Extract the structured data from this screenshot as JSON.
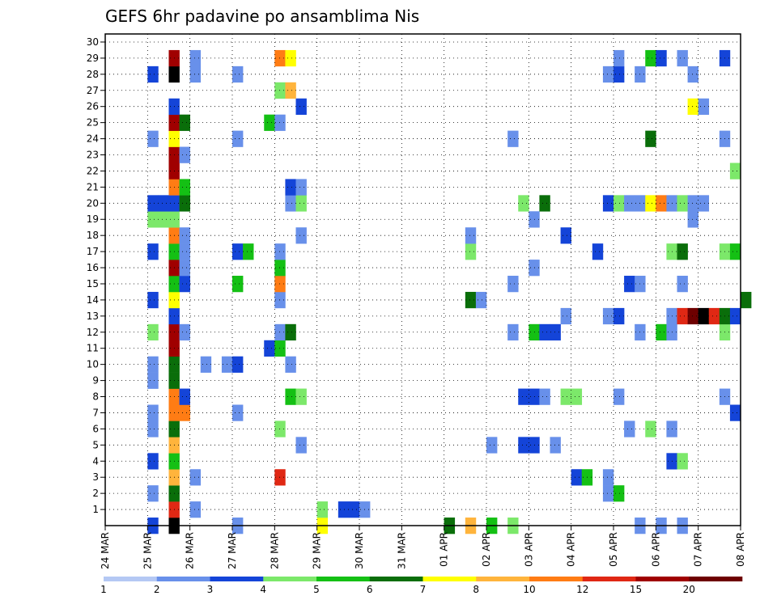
{
  "chart_data": {
    "type": "heatmap",
    "title": "GEFS 6hr padavine po ansamblima Nis",
    "x_labels": [
      "24 MAR",
      "25 MAR",
      "26 MAR",
      "27 MAR",
      "28 MAR",
      "29 MAR",
      "30 MAR",
      "31 MAR",
      "01 APR",
      "02 APR",
      "03 APR",
      "04 APR",
      "05 APR",
      "06 APR",
      "07 APR",
      "08 APR"
    ],
    "y_labels": [
      "1",
      "2",
      "3",
      "4",
      "5",
      "6",
      "7",
      "8",
      "9",
      "10",
      "11",
      "12",
      "13",
      "14",
      "15",
      "16",
      "17",
      "18",
      "19",
      "20",
      "21",
      "22",
      "23",
      "24",
      "25",
      "26",
      "27",
      "28",
      "29",
      "30"
    ],
    "y_range": [
      0,
      30
    ],
    "grid": true,
    "colorbar": {
      "labels": [
        "1",
        "2",
        "3",
        "4",
        "5",
        "6",
        "7",
        "8",
        "10",
        "12",
        "15",
        "20"
      ],
      "colors": [
        "#b4c8f4",
        "#6890ea",
        "#1444d8",
        "#7ce86a",
        "#14c014",
        "#0a6e0a",
        "#ffff00",
        "#ffb43c",
        "#ff7c14",
        "#e02814",
        "#a00000",
        "#6e0000"
      ]
    },
    "cells": [
      [
        1,
        0,
        2
      ],
      [
        1.5,
        0,
        12
      ],
      [
        3,
        0,
        1
      ],
      [
        5,
        0,
        6
      ],
      [
        8,
        0,
        3
      ],
      [
        8.5,
        0,
        7
      ],
      [
        8,
        0,
        5
      ],
      [
        9,
        0,
        4
      ],
      [
        9.5,
        0,
        3
      ],
      [
        12.5,
        0,
        1
      ],
      [
        13,
        0,
        1
      ],
      [
        13.5,
        0,
        1
      ],
      [
        1.5,
        1,
        9
      ],
      [
        2,
        1,
        1
      ],
      [
        5,
        1,
        3
      ],
      [
        5.5,
        1,
        2
      ],
      [
        5.75,
        1,
        2
      ],
      [
        6,
        1,
        1
      ],
      [
        1,
        2,
        1
      ],
      [
        1.5,
        2,
        5
      ],
      [
        11.75,
        2,
        1
      ],
      [
        12,
        2,
        4
      ],
      [
        1.5,
        3,
        7
      ],
      [
        2,
        3,
        1
      ],
      [
        4,
        3,
        9
      ],
      [
        11,
        3,
        2
      ],
      [
        11.25,
        3,
        4
      ],
      [
        11.75,
        3,
        1
      ],
      [
        1,
        4,
        2
      ],
      [
        1.5,
        4,
        4
      ],
      [
        13.25,
        4,
        2
      ],
      [
        13.5,
        4,
        3
      ],
      [
        1.5,
        5,
        7
      ],
      [
        4.5,
        5,
        1
      ],
      [
        9,
        5,
        1
      ],
      [
        9.75,
        5,
        2
      ],
      [
        10,
        5,
        2
      ],
      [
        10.5,
        5,
        1
      ],
      [
        1,
        6,
        1
      ],
      [
        1.5,
        6,
        5
      ],
      [
        4,
        6,
        3
      ],
      [
        12.25,
        6,
        1
      ],
      [
        12.75,
        6,
        3
      ],
      [
        13.25,
        6,
        1
      ],
      [
        1,
        7,
        1
      ],
      [
        1.5,
        7,
        8
      ],
      [
        1.75,
        7,
        8
      ],
      [
        3,
        7,
        1
      ],
      [
        14.75,
        7,
        2
      ],
      [
        1.5,
        8,
        8
      ],
      [
        1.75,
        8,
        2
      ],
      [
        4.25,
        8,
        4
      ],
      [
        4.5,
        8,
        3
      ],
      [
        9.75,
        8,
        2
      ],
      [
        10,
        8,
        2
      ],
      [
        10.25,
        8,
        1
      ],
      [
        10.75,
        8,
        3
      ],
      [
        11,
        8,
        3
      ],
      [
        12,
        8,
        1
      ],
      [
        14.5,
        8,
        1
      ],
      [
        1,
        9,
        1
      ],
      [
        1.5,
        9,
        5
      ],
      [
        1,
        10,
        1
      ],
      [
        1.5,
        10,
        5
      ],
      [
        2.25,
        10,
        1
      ],
      [
        2.75,
        10,
        1
      ],
      [
        3,
        10,
        2
      ],
      [
        4.25,
        10,
        1
      ],
      [
        1.5,
        11,
        10
      ],
      [
        3.75,
        11,
        2
      ],
      [
        4,
        11,
        4
      ],
      [
        1,
        12,
        3
      ],
      [
        1.5,
        12,
        10
      ],
      [
        1.75,
        12,
        1
      ],
      [
        4,
        12,
        1
      ],
      [
        4.25,
        12,
        5
      ],
      [
        9.5,
        12,
        1
      ],
      [
        10,
        12,
        4
      ],
      [
        10.25,
        12,
        2
      ],
      [
        10.5,
        12,
        2
      ],
      [
        12.5,
        12,
        1
      ],
      [
        13,
        12,
        4
      ],
      [
        13.25,
        12,
        1
      ],
      [
        14.5,
        12,
        3
      ],
      [
        1.5,
        13,
        2
      ],
      [
        10.75,
        13,
        1
      ],
      [
        11.75,
        13,
        1
      ],
      [
        12,
        13,
        2
      ],
      [
        13.25,
        13,
        1
      ],
      [
        13.5,
        13,
        9
      ],
      [
        13.75,
        13,
        11
      ],
      [
        14,
        13,
        12
      ],
      [
        14.25,
        13,
        9
      ],
      [
        14.5,
        13,
        5
      ],
      [
        14.75,
        13,
        2
      ],
      [
        1,
        14,
        2
      ],
      [
        1.5,
        14,
        6
      ],
      [
        4,
        14,
        1
      ],
      [
        8.5,
        14,
        5
      ],
      [
        8.75,
        14,
        1
      ],
      [
        15,
        14,
        5
      ],
      [
        1.5,
        15,
        4
      ],
      [
        1.75,
        15,
        2
      ],
      [
        3,
        15,
        4
      ],
      [
        4,
        15,
        8
      ],
      [
        9.5,
        15,
        1
      ],
      [
        12.25,
        15,
        2
      ],
      [
        12.5,
        15,
        1
      ],
      [
        13.5,
        15,
        1
      ],
      [
        1.5,
        16,
        10
      ],
      [
        1.75,
        16,
        1
      ],
      [
        4,
        16,
        4
      ],
      [
        10,
        16,
        1
      ],
      [
        1,
        17,
        2
      ],
      [
        1.5,
        17,
        4
      ],
      [
        1.75,
        17,
        1
      ],
      [
        3,
        17,
        2
      ],
      [
        3.25,
        17,
        4
      ],
      [
        4,
        17,
        1
      ],
      [
        8.5,
        17,
        3
      ],
      [
        11.5,
        17,
        2
      ],
      [
        13.25,
        17,
        3
      ],
      [
        13.5,
        17,
        5
      ],
      [
        14.5,
        17,
        3
      ],
      [
        14.75,
        17,
        4
      ],
      [
        1.5,
        18,
        8
      ],
      [
        1.75,
        18,
        1
      ],
      [
        4.5,
        18,
        1
      ],
      [
        8.5,
        18,
        1
      ],
      [
        10.75,
        18,
        2
      ],
      [
        1,
        19,
        3
      ],
      [
        1.25,
        19,
        3
      ],
      [
        1.5,
        19,
        3
      ],
      [
        10,
        19,
        1
      ],
      [
        13.75,
        19,
        1
      ],
      [
        1,
        20,
        2
      ],
      [
        1.25,
        20,
        2
      ],
      [
        1.5,
        20,
        2
      ],
      [
        1.75,
        20,
        5
      ],
      [
        4.25,
        20,
        1
      ],
      [
        4.5,
        20,
        3
      ],
      [
        9.75,
        20,
        3
      ],
      [
        10.25,
        20,
        5
      ],
      [
        11.75,
        20,
        2
      ],
      [
        12,
        20,
        3
      ],
      [
        12.25,
        20,
        1
      ],
      [
        12.5,
        20,
        1
      ],
      [
        12.75,
        20,
        6
      ],
      [
        13,
        20,
        8
      ],
      [
        13.25,
        20,
        1
      ],
      [
        13.5,
        20,
        3
      ],
      [
        13.75,
        20,
        1
      ],
      [
        14,
        20,
        1
      ],
      [
        1.5,
        21,
        8
      ],
      [
        1.75,
        21,
        4
      ],
      [
        4.25,
        21,
        2
      ],
      [
        4.5,
        21,
        1
      ],
      [
        1.5,
        22,
        10
      ],
      [
        14.75,
        22,
        3
      ],
      [
        1.5,
        23,
        10
      ],
      [
        1.75,
        23,
        1
      ],
      [
        1,
        24,
        1
      ],
      [
        1.5,
        24,
        6
      ],
      [
        3,
        24,
        1
      ],
      [
        9.5,
        24,
        1
      ],
      [
        12.75,
        24,
        5
      ],
      [
        14.5,
        24,
        1
      ],
      [
        1.5,
        25,
        10
      ],
      [
        1.75,
        25,
        5
      ],
      [
        3.75,
        25,
        4
      ],
      [
        4,
        25,
        1
      ],
      [
        1.5,
        26,
        2
      ],
      [
        4.5,
        26,
        2
      ],
      [
        13.75,
        26,
        6
      ],
      [
        14,
        26,
        1
      ],
      [
        4,
        27,
        3
      ],
      [
        4.25,
        27,
        7
      ],
      [
        1,
        28,
        2
      ],
      [
        1.5,
        28,
        12
      ],
      [
        2,
        28,
        1
      ],
      [
        3,
        28,
        1
      ],
      [
        11.75,
        28,
        1
      ],
      [
        12,
        28,
        2
      ],
      [
        12.5,
        28,
        1
      ],
      [
        13.75,
        28,
        1
      ],
      [
        1.5,
        29,
        10
      ],
      [
        2,
        29,
        1
      ],
      [
        4,
        29,
        8
      ],
      [
        4.25,
        29,
        6
      ],
      [
        12,
        29,
        1
      ],
      [
        12.75,
        29,
        4
      ],
      [
        13,
        29,
        2
      ],
      [
        13.5,
        29,
        1
      ],
      [
        14.5,
        29,
        2
      ]
    ]
  }
}
